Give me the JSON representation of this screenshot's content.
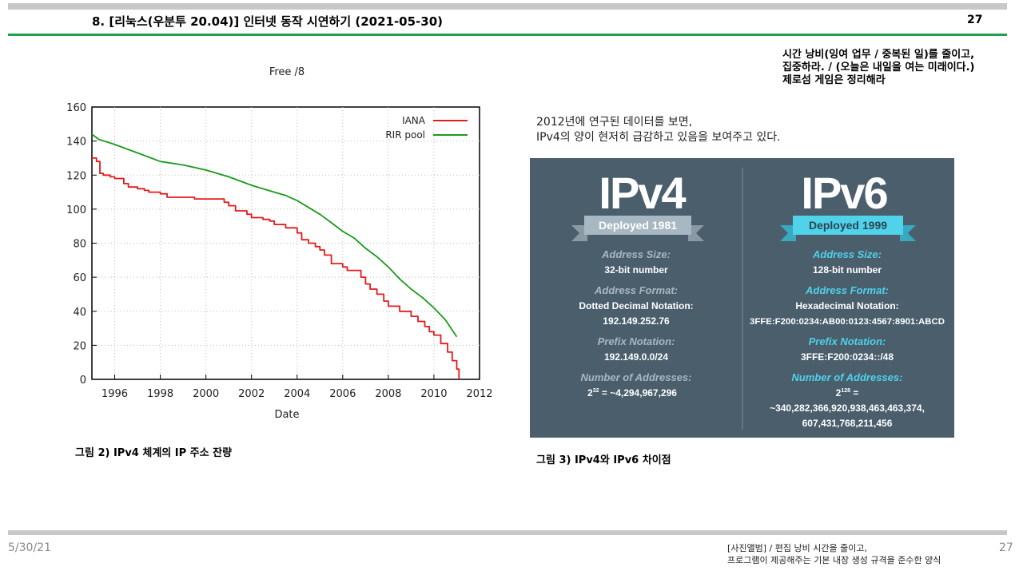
{
  "header": {
    "title": "8. [리눅스(우분투 20.04)] 인터넷 동작 시연하기 (2021-05-30)",
    "page_number": "27"
  },
  "quote": {
    "line1": "시간 낭비(잉여 업무 / 중복된 일)를 줄이고,",
    "line2": "집중하라. / (오늘은 내일을 여는 미래이다.)",
    "line3": "제로섬 게임은 정리해라"
  },
  "intro": {
    "line1": "2012년에 연구된 데이터를 보면,",
    "line2": "IPv4의 양이 현저히 급감하고 있음을 보여주고 있다."
  },
  "captions": {
    "figure2": "그림 2) IPv4 체계의 IP 주소 잔량",
    "figure3": "그림 3) IPv4와 IPv6 차이점"
  },
  "chart_data": {
    "type": "line",
    "title": "Free /8",
    "xlabel": "Date",
    "ylabel": "",
    "xlim": [
      1995,
      2012
    ],
    "ylim": [
      0,
      160
    ],
    "x_ticks": [
      1996,
      1998,
      2000,
      2002,
      2004,
      2006,
      2008,
      2010,
      2012
    ],
    "y_ticks": [
      0,
      20,
      40,
      60,
      80,
      100,
      120,
      140,
      160
    ],
    "legend_position": "top-right",
    "colors": {
      "IANA": "#e41a1c",
      "RIR pool": "#1a9a1a"
    },
    "series": [
      {
        "name": "IANA",
        "x": [
          1995.0,
          1995.2,
          1995.35,
          1995.5,
          1995.8,
          1996.0,
          1996.4,
          1996.6,
          1997.0,
          1997.3,
          1997.5,
          1998.0,
          1998.3,
          1999.0,
          1999.5,
          2000.0,
          2000.8,
          2001.0,
          2001.3,
          2001.8,
          2002.0,
          2002.5,
          2002.8,
          2003.0,
          2003.5,
          2004.0,
          2004.2,
          2004.5,
          2004.8,
          2005.0,
          2005.2,
          2005.5,
          2006.0,
          2006.2,
          2006.8,
          2007.0,
          2007.2,
          2007.5,
          2007.8,
          2008.0,
          2008.5,
          2009.0,
          2009.3,
          2009.6,
          2009.8,
          2010.0,
          2010.3,
          2010.6,
          2010.8,
          2011.0,
          2011.1
        ],
        "values": [
          130,
          128,
          121,
          120,
          119,
          118,
          115,
          113,
          112,
          111,
          110,
          109,
          107,
          107,
          106,
          106,
          104,
          102,
          99,
          97,
          95,
          94,
          93,
          91,
          89,
          86,
          82,
          80,
          78,
          76,
          73,
          68,
          66,
          64,
          60,
          56,
          53,
          50,
          46,
          43,
          40,
          37,
          34,
          31,
          28,
          26,
          21,
          16,
          11,
          6,
          0
        ]
      },
      {
        "name": "RIR pool",
        "x": [
          1995.0,
          1995.3,
          1996.0,
          1997.0,
          1998.0,
          1999.0,
          2000.0,
          2001.0,
          2002.0,
          2003.0,
          2003.5,
          2004.0,
          2004.5,
          2005.0,
          2005.5,
          2006.0,
          2006.5,
          2007.0,
          2007.5,
          2008.0,
          2008.5,
          2009.0,
          2009.5,
          2010.0,
          2010.5,
          2011.0
        ],
        "values": [
          144,
          141,
          138,
          133,
          128,
          126,
          123,
          119,
          114,
          110,
          108,
          105,
          101,
          97,
          92,
          87,
          83,
          77,
          72,
          66,
          59,
          53,
          48,
          42,
          35,
          25
        ]
      }
    ]
  },
  "ipv4": {
    "logo_text": "IPv4",
    "deployed": "Deployed 1981",
    "address_size_label": "Address Size:",
    "address_size_value": "32-bit number",
    "address_format_label": "Address Format:",
    "address_format_value1": "Dotted Decimal Notation:",
    "address_format_value2": "192.149.252.76",
    "prefix_label": "Prefix Notation:",
    "prefix_value": "192.149.0.0/24",
    "num_label": "Number of Addresses:",
    "num_base": "2",
    "num_exp": "32",
    "num_rest": " = ~4,294,967,296",
    "accent": "#a7b8c2"
  },
  "ipv6": {
    "logo_text": "IPv6",
    "deployed": "Deployed 1999",
    "address_size_label": "Address Size:",
    "address_size_value": "128-bit number",
    "address_format_label": "Address Format:",
    "address_format_value1": "Hexadecimal Notation:",
    "address_format_value2": "3FFE:F200:0234:AB00:0123:4567:8901:ABCD",
    "prefix_label": "Prefix Notation:",
    "prefix_value": "3FFE:F200:0234::/48",
    "num_label": "Number of Addresses:",
    "num_base": "2",
    "num_exp": "128",
    "num_rest": " =",
    "num_value1": "~340,282,366,920,938,463,463,374,",
    "num_value2": "607,431,768,211,456",
    "accent": "#4fd2ea"
  },
  "footer": {
    "date": "5/30/21",
    "note1": "[사진앨범] / 편집 낭비 시간을 줄이고,",
    "note2": "프로그램이 제공해주는 기본 내장 생성 규격을 준수한 양식",
    "page_number": "27"
  }
}
